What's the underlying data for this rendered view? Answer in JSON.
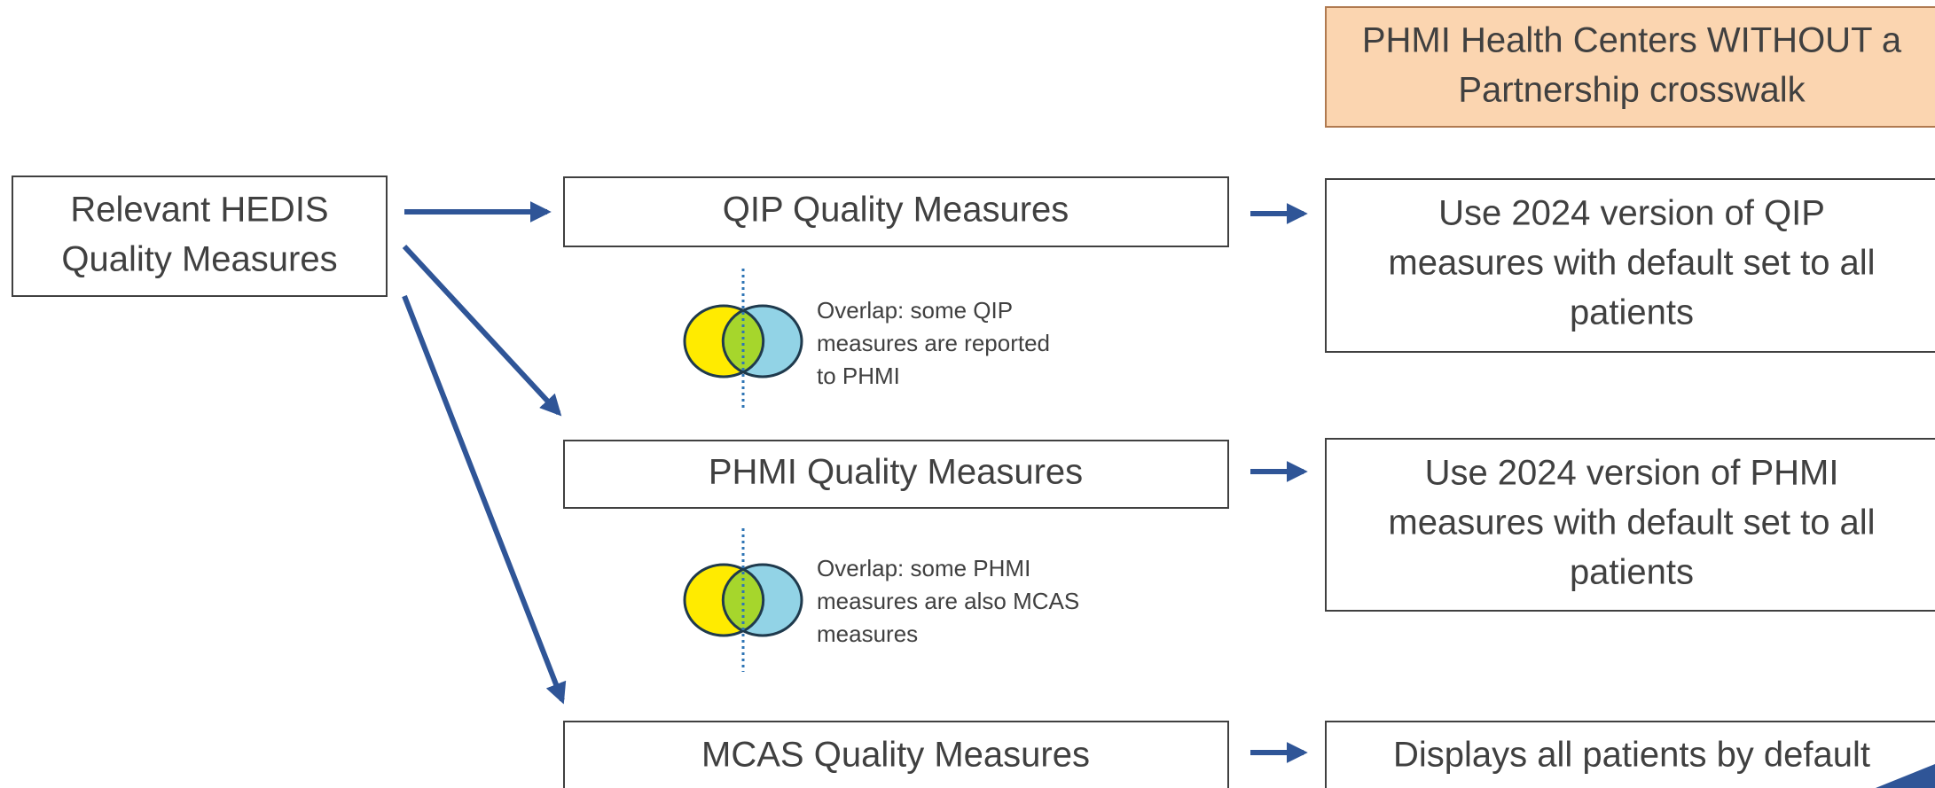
{
  "header": {
    "lines": [
      "PHMI Health Centers WITHOUT a",
      "Partnership crosswalk"
    ]
  },
  "source": {
    "lines": [
      "Relevant HEDIS",
      "Quality Measures"
    ]
  },
  "measures": [
    {
      "lines": [
        "QIP Quality Measures"
      ]
    },
    {
      "lines": [
        "PHMI Quality Measures"
      ]
    },
    {
      "lines": [
        "MCAS Quality Measures"
      ]
    }
  ],
  "outcomes": [
    {
      "lines": [
        "Use 2024 version of QIP",
        "measures with default set to all",
        "patients"
      ]
    },
    {
      "lines": [
        "Use 2024 version of PHMI",
        "measures with default set to all",
        "patients"
      ]
    },
    {
      "lines": [
        "Displays all patients by default"
      ]
    }
  ],
  "overlaps": [
    {
      "lines": [
        "Overlap: some QIP",
        "measures are reported",
        "to PHMI"
      ]
    },
    {
      "lines": [
        "Overlap: some PHMI",
        "measures are also MCAS",
        "measures"
      ]
    }
  ]
}
